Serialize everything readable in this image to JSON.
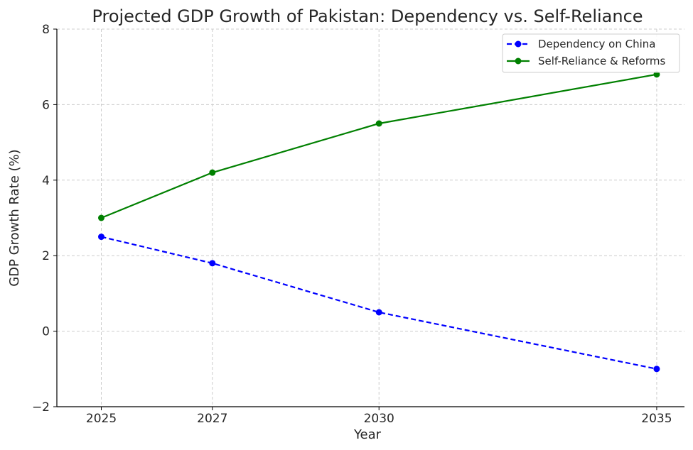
{
  "chart_data": {
    "type": "line",
    "title": "Projected GDP Growth of Pakistan: Dependency vs. Self-Reliance",
    "xlabel": "Year",
    "ylabel": "GDP Growth Rate (%)",
    "x": [
      2025,
      2027,
      2030,
      2035
    ],
    "x_ticks": [
      "2025",
      "2027",
      "2030",
      "2035"
    ],
    "xlim": [
      2024.2,
      2035.5
    ],
    "y_ticks": [
      -2,
      0,
      2,
      4,
      6,
      8
    ],
    "y_tick_labels": [
      "−2",
      "0",
      "2",
      "4",
      "6",
      "8"
    ],
    "ylim": [
      -2,
      8
    ],
    "grid": true,
    "legend_position": "top-right",
    "series": [
      {
        "name": "Dependency on China",
        "values": [
          2.5,
          1.8,
          0.5,
          -1.0
        ],
        "color": "#0000ff",
        "style": "dashed",
        "marker": "circle"
      },
      {
        "name": "Self-Reliance & Reforms",
        "values": [
          3.0,
          4.2,
          5.5,
          6.8
        ],
        "color": "#008000",
        "style": "solid",
        "marker": "circle"
      }
    ]
  }
}
